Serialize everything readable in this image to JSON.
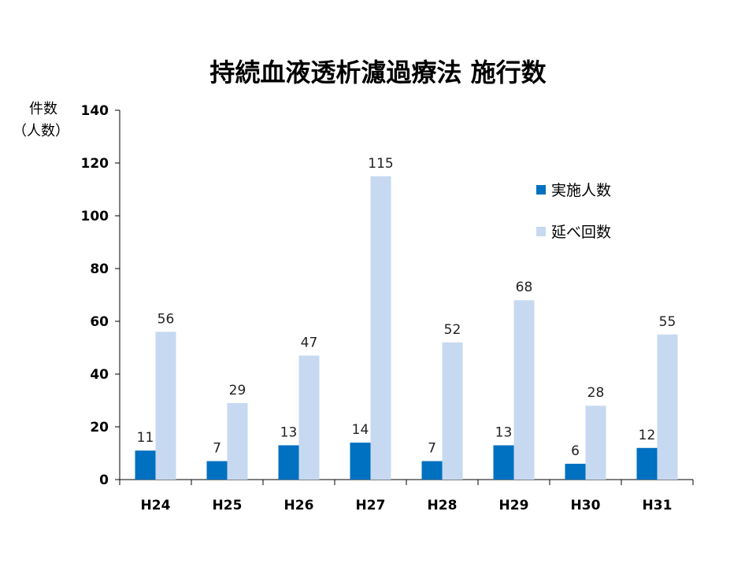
{
  "chart_data": {
    "type": "bar",
    "title": "持続血液透析濾過療法 施行数",
    "ylabel_line1": "件数",
    "ylabel_line2": "（人数）",
    "xlabel": "",
    "ylim": [
      0,
      140
    ],
    "yticks": [
      0,
      20,
      40,
      60,
      80,
      100,
      120,
      140
    ],
    "categories": [
      "H24",
      "H25",
      "H26",
      "H27",
      "H28",
      "H29",
      "H30",
      "H31"
    ],
    "series": [
      {
        "name": "実施人数",
        "color": "#0070C0",
        "values": [
          11,
          7,
          13,
          14,
          7,
          13,
          6,
          12
        ]
      },
      {
        "name": "延べ回数",
        "color": "#C6D9F1",
        "values": [
          56,
          29,
          47,
          115,
          52,
          68,
          28,
          55
        ]
      }
    ],
    "legend_position": "top-right",
    "grid": false
  }
}
